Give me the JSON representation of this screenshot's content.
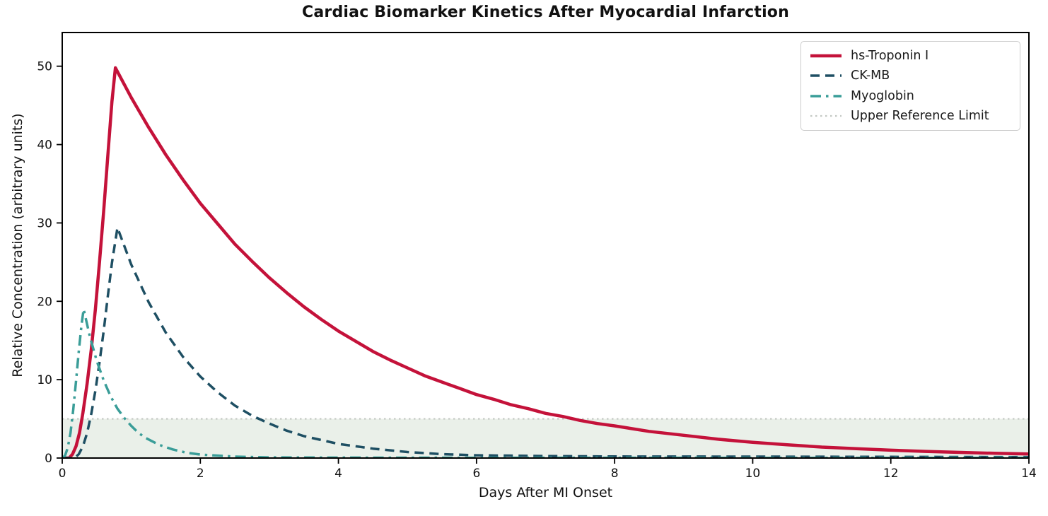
{
  "background": "#ffffff",
  "chart_data": {
    "type": "line",
    "title": "Cardiac Biomarker Kinetics After Myocardial Infarction",
    "xlabel": "Days After MI Onset",
    "ylabel": "Relative Concentration (arbitrary units)",
    "xlim": [
      0,
      14
    ],
    "ylim": [
      0,
      54.3
    ],
    "xticks": [
      0,
      2,
      4,
      6,
      8,
      10,
      12,
      14
    ],
    "yticks": [
      0,
      10,
      20,
      30,
      40,
      50
    ],
    "grid": false,
    "legend_position": "upper right",
    "legend_entries": [
      "hs-Troponin I",
      "CK-MB",
      "Myoglobin",
      "Upper Reference Limit"
    ],
    "reference": {
      "label": "Upper Reference Limit",
      "value": 5,
      "color": "#c3c8c3",
      "style": "dotted",
      "fill_below_color": "#eaf0e9"
    },
    "series": [
      {
        "name": "hs-Troponin I",
        "color": "#c4123a",
        "style": "solid",
        "width": 4.5,
        "points": [
          [
            0,
            0
          ],
          [
            0.1,
            0
          ],
          [
            0.15,
            0.5
          ],
          [
            0.2,
            1.5
          ],
          [
            0.25,
            3.2
          ],
          [
            0.3,
            5.8
          ],
          [
            0.36,
            9.5
          ],
          [
            0.42,
            13.8
          ],
          [
            0.48,
            19
          ],
          [
            0.54,
            25
          ],
          [
            0.6,
            31.5
          ],
          [
            0.66,
            38.5
          ],
          [
            0.72,
            45.5
          ],
          [
            0.77,
            49.8
          ],
          [
            1,
            46
          ],
          [
            1.25,
            42.2
          ],
          [
            1.5,
            38.7
          ],
          [
            1.75,
            35.5
          ],
          [
            2,
            32.5
          ],
          [
            2.25,
            29.9
          ],
          [
            2.5,
            27.3
          ],
          [
            2.75,
            25.1
          ],
          [
            3,
            23
          ],
          [
            3.25,
            21.1
          ],
          [
            3.5,
            19.3
          ],
          [
            3.75,
            17.7
          ],
          [
            4,
            16.2
          ],
          [
            4.25,
            14.9
          ],
          [
            4.5,
            13.6
          ],
          [
            4.75,
            12.5
          ],
          [
            5,
            11.5
          ],
          [
            5.25,
            10.5
          ],
          [
            5.5,
            9.7
          ],
          [
            5.75,
            8.9
          ],
          [
            6,
            8.1
          ],
          [
            6.25,
            7.5
          ],
          [
            6.5,
            6.8
          ],
          [
            6.75,
            6.3
          ],
          [
            7,
            5.7
          ],
          [
            7.25,
            5.3
          ],
          [
            7.5,
            4.8
          ],
          [
            7.75,
            4.4
          ],
          [
            8,
            4.1
          ],
          [
            8.5,
            3.4
          ],
          [
            9,
            2.9
          ],
          [
            9.5,
            2.4
          ],
          [
            10,
            2
          ],
          [
            10.5,
            1.7
          ],
          [
            11,
            1.4
          ],
          [
            11.5,
            1.2
          ],
          [
            12,
            1
          ],
          [
            12.5,
            0.85
          ],
          [
            13,
            0.72
          ],
          [
            13.5,
            0.6
          ],
          [
            14,
            0.51
          ]
        ]
      },
      {
        "name": "CK-MB",
        "color": "#1e4f63",
        "style": "dashed",
        "width": 3.5,
        "points": [
          [
            0,
            0
          ],
          [
            0.18,
            0
          ],
          [
            0.24,
            0.5
          ],
          [
            0.3,
            1.5
          ],
          [
            0.36,
            3.2
          ],
          [
            0.42,
            5.6
          ],
          [
            0.48,
            8.6
          ],
          [
            0.54,
            12.2
          ],
          [
            0.6,
            16.2
          ],
          [
            0.66,
            20.6
          ],
          [
            0.72,
            24.9
          ],
          [
            0.8,
            29.4
          ],
          [
            1,
            24.7
          ],
          [
            1.25,
            19.9
          ],
          [
            1.5,
            16
          ],
          [
            1.75,
            12.9
          ],
          [
            2,
            10.4
          ],
          [
            2.25,
            8.4
          ],
          [
            2.5,
            6.7
          ],
          [
            2.75,
            5.4
          ],
          [
            3,
            4.4
          ],
          [
            3.25,
            3.5
          ],
          [
            3.5,
            2.8
          ],
          [
            3.75,
            2.3
          ],
          [
            4,
            1.8
          ],
          [
            4.5,
            1.2
          ],
          [
            5,
            0.77
          ],
          [
            5.5,
            0.5
          ],
          [
            6,
            0.35
          ],
          [
            7,
            0.25
          ],
          [
            8,
            0.2
          ],
          [
            10,
            0.18
          ],
          [
            12,
            0.15
          ],
          [
            14,
            0.12
          ]
        ]
      },
      {
        "name": "Myoglobin",
        "color": "#3a9d98",
        "style": "dashdot",
        "width": 3.5,
        "points": [
          [
            0,
            0
          ],
          [
            0.04,
            0.3
          ],
          [
            0.08,
            1.3
          ],
          [
            0.12,
            3.2
          ],
          [
            0.16,
            6.2
          ],
          [
            0.2,
            9.8
          ],
          [
            0.24,
            13.6
          ],
          [
            0.28,
            17
          ],
          [
            0.31,
            19
          ],
          [
            0.4,
            15.5
          ],
          [
            0.5,
            12.4
          ],
          [
            0.6,
            9.9
          ],
          [
            0.7,
            7.9
          ],
          [
            0.8,
            6.3
          ],
          [
            0.9,
            5.1
          ],
          [
            1,
            4.1
          ],
          [
            1.1,
            3.25
          ],
          [
            1.2,
            2.6
          ],
          [
            1.4,
            1.7
          ],
          [
            1.6,
            1.1
          ],
          [
            1.8,
            0.68
          ],
          [
            2,
            0.44
          ],
          [
            2.5,
            0.18
          ],
          [
            3,
            0.08
          ],
          [
            4,
            0.05
          ],
          [
            6,
            0.04
          ],
          [
            10,
            0.03
          ],
          [
            14,
            0.03
          ]
        ]
      }
    ]
  }
}
